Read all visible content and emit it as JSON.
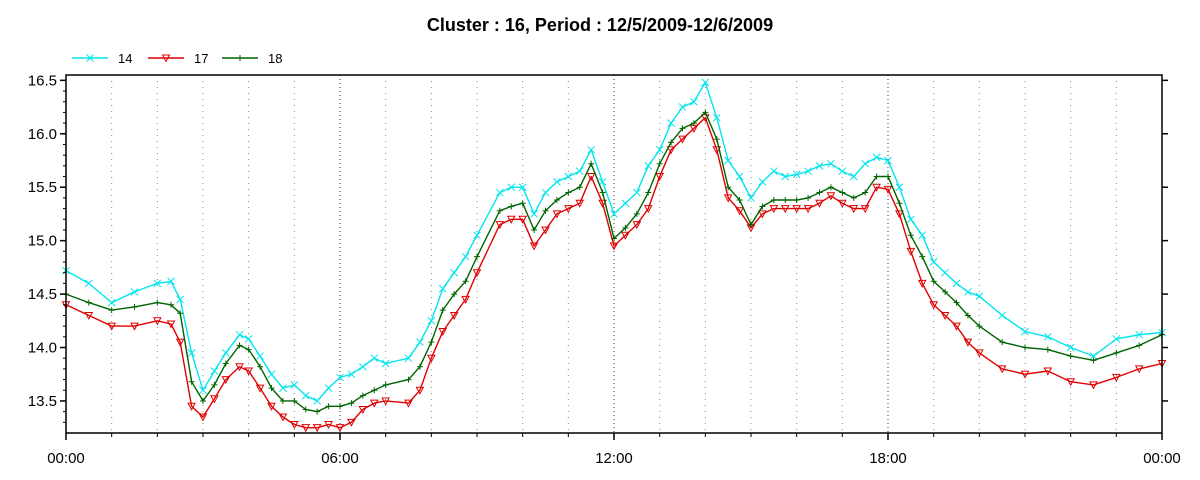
{
  "chart_data": {
    "type": "line",
    "title": "Cluster : 16, Period : 12/5/2009-12/6/2009",
    "xlabel": "",
    "ylabel": "",
    "x_ticks": [
      "00:00",
      "06:00",
      "12:00",
      "18:00",
      "00:00"
    ],
    "y_ticks": [
      "13.5",
      "14.0",
      "14.5",
      "15.0",
      "15.5",
      "16.0",
      "16.5"
    ],
    "xlim_hours": [
      0,
      24
    ],
    "ylim": [
      13.2,
      16.55
    ],
    "grid": "vertical dotted lines every hour, dark dotted at 6-hour ticks",
    "legend_position": "top-left",
    "x": [
      0,
      0.5,
      1,
      1.5,
      2,
      2.3,
      2.5,
      2.75,
      3,
      3.25,
      3.5,
      3.8,
      4,
      4.25,
      4.5,
      4.75,
      5,
      5.25,
      5.5,
      5.75,
      6,
      6.25,
      6.5,
      6.75,
      7,
      7.5,
      7.75,
      8,
      8.25,
      8.5,
      8.75,
      9,
      9.5,
      9.75,
      10,
      10.25,
      10.5,
      10.75,
      11,
      11.25,
      11.5,
      11.75,
      12,
      12.25,
      12.5,
      12.75,
      13,
      13.25,
      13.5,
      13.75,
      14,
      14.25,
      14.5,
      14.75,
      15,
      15.25,
      15.5,
      15.75,
      16,
      16.25,
      16.5,
      16.75,
      17,
      17.25,
      17.5,
      17.75,
      18,
      18.25,
      18.5,
      18.75,
      19,
      19.25,
      19.5,
      19.75,
      20,
      20.5,
      21,
      21.5,
      22,
      22.5,
      23,
      23.5,
      24
    ],
    "series": [
      {
        "name": "14",
        "color": "#00e5ee",
        "marker": "x",
        "values": [
          14.72,
          14.6,
          14.42,
          14.52,
          14.6,
          14.62,
          14.45,
          13.95,
          13.6,
          13.78,
          13.95,
          14.12,
          14.08,
          13.92,
          13.75,
          13.62,
          13.65,
          13.55,
          13.5,
          13.62,
          13.72,
          13.75,
          13.82,
          13.9,
          13.85,
          13.9,
          14.05,
          14.25,
          14.55,
          14.7,
          14.85,
          15.05,
          15.45,
          15.5,
          15.5,
          15.25,
          15.45,
          15.55,
          15.6,
          15.65,
          15.85,
          15.55,
          15.25,
          15.35,
          15.45,
          15.7,
          15.85,
          16.1,
          16.25,
          16.3,
          16.48,
          16.15,
          15.75,
          15.6,
          15.4,
          15.55,
          15.65,
          15.6,
          15.62,
          15.65,
          15.7,
          15.72,
          15.65,
          15.6,
          15.72,
          15.78,
          15.75,
          15.5,
          15.2,
          15.05,
          14.8,
          14.7,
          14.6,
          14.52,
          14.48,
          14.3,
          14.15,
          14.1,
          14.0,
          13.92,
          14.08,
          14.12,
          14.14
        ]
      },
      {
        "name": "17",
        "color": "#e00000",
        "marker": "triangle-down",
        "values": [
          14.4,
          14.3,
          14.2,
          14.2,
          14.25,
          14.22,
          14.05,
          13.45,
          13.35,
          13.52,
          13.7,
          13.82,
          13.78,
          13.62,
          13.45,
          13.35,
          13.28,
          13.25,
          13.25,
          13.28,
          13.25,
          13.3,
          13.42,
          13.48,
          13.5,
          13.48,
          13.6,
          13.9,
          14.15,
          14.3,
          14.45,
          14.7,
          15.15,
          15.2,
          15.2,
          14.95,
          15.1,
          15.25,
          15.3,
          15.35,
          15.6,
          15.35,
          14.95,
          15.05,
          15.15,
          15.3,
          15.6,
          15.85,
          15.95,
          16.05,
          16.15,
          15.85,
          15.4,
          15.28,
          15.12,
          15.25,
          15.3,
          15.3,
          15.3,
          15.3,
          15.35,
          15.42,
          15.35,
          15.3,
          15.3,
          15.5,
          15.48,
          15.25,
          14.9,
          14.6,
          14.4,
          14.3,
          14.2,
          14.05,
          13.95,
          13.8,
          13.75,
          13.78,
          13.68,
          13.65,
          13.72,
          13.8,
          13.85
        ]
      },
      {
        "name": "18",
        "color": "#006400",
        "marker": "tick",
        "values": [
          14.5,
          14.42,
          14.35,
          14.38,
          14.42,
          14.4,
          14.32,
          13.68,
          13.5,
          13.65,
          13.85,
          14.02,
          13.98,
          13.82,
          13.62,
          13.5,
          13.5,
          13.42,
          13.4,
          13.45,
          13.45,
          13.48,
          13.55,
          13.6,
          13.65,
          13.7,
          13.82,
          14.05,
          14.35,
          14.5,
          14.62,
          14.85,
          15.28,
          15.32,
          15.35,
          15.1,
          15.28,
          15.38,
          15.45,
          15.5,
          15.72,
          15.45,
          15.02,
          15.12,
          15.25,
          15.45,
          15.72,
          15.92,
          16.05,
          16.1,
          16.2,
          15.95,
          15.5,
          15.38,
          15.15,
          15.32,
          15.38,
          15.38,
          15.38,
          15.4,
          15.45,
          15.5,
          15.45,
          15.4,
          15.45,
          15.6,
          15.6,
          15.35,
          15.05,
          14.85,
          14.62,
          14.52,
          14.42,
          14.3,
          14.2,
          14.05,
          14.0,
          13.98,
          13.92,
          13.88,
          13.95,
          14.02,
          14.12
        ]
      }
    ]
  }
}
